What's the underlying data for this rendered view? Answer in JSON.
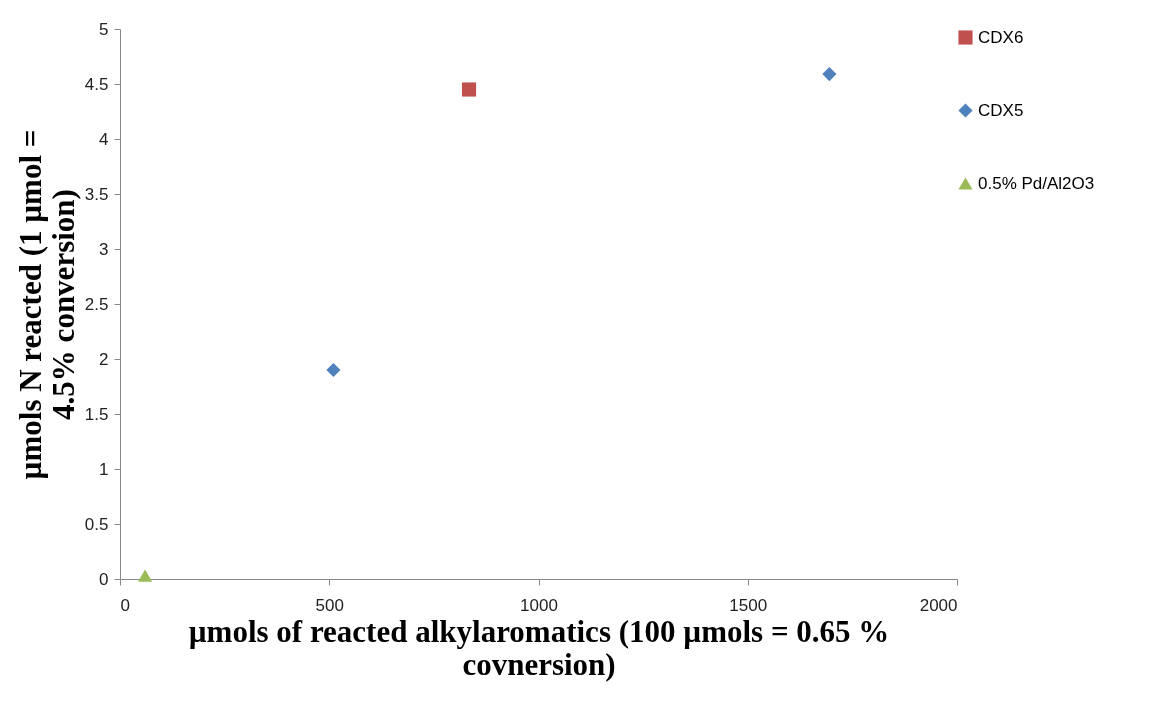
{
  "chart_data": {
    "type": "scatter",
    "xlabel": "µmols of reacted alkylaromatics (100 µmols = 0.65 % covnersion)",
    "ylabel": "µmols  N reacted  (1 µmol = 4.5% conversion)",
    "xlim": [
      0,
      2000
    ],
    "xticks": [
      0,
      500,
      1000,
      1500,
      2000
    ],
    "ylim": [
      0,
      5
    ],
    "yticks": [
      0,
      0.5,
      1,
      1.5,
      2,
      2.5,
      3,
      3.5,
      4,
      4.5,
      5
    ],
    "grid": false,
    "legend": "right",
    "series": [
      {
        "name": "CDX6",
        "color": "#c0504d",
        "marker": "square",
        "x": [
          834
        ],
        "values": [
          4.45
        ]
      },
      {
        "name": "CDX5",
        "color": "#4f81bd",
        "marker": "diamond",
        "x": [
          510,
          1695
        ],
        "values": [
          1.9,
          4.59
        ]
      },
      {
        "name": "0.5% Pd/Al2O3",
        "color": "#9bbb59",
        "marker": "triangle",
        "x": [
          60
        ],
        "values": [
          0.03
        ]
      }
    ]
  }
}
